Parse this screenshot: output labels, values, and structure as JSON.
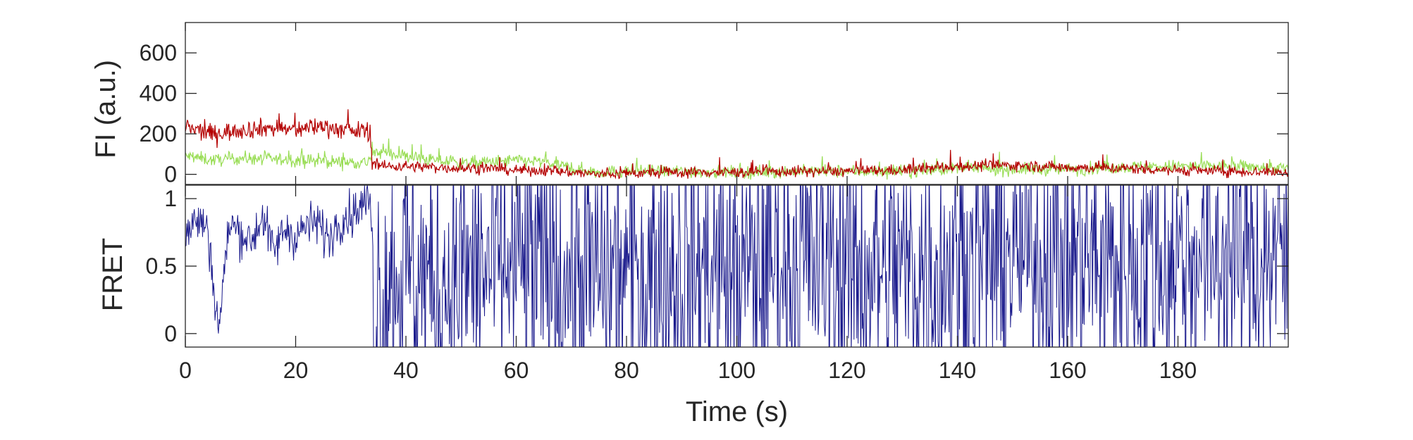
{
  "chart_data": [
    {
      "type": "line",
      "panel": "top",
      "title": "",
      "xlabel": "",
      "ylabel": "FI (a.u.)",
      "xlim": [
        0,
        200
      ],
      "ylim": [
        -50,
        750
      ],
      "yticks": [
        0,
        200,
        400,
        600
      ],
      "ytick_labels": [
        "0",
        "200",
        "400",
        "600"
      ],
      "grid": false,
      "series": [
        {
          "color": "#99dd55",
          "x": [
            0,
            5,
            10,
            15,
            20,
            25,
            30,
            33,
            34,
            36,
            40,
            45,
            50,
            55,
            60,
            65,
            70,
            75,
            80,
            90,
            100,
            110,
            120,
            130,
            140,
            150,
            160,
            170,
            180,
            190,
            200
          ],
          "values": [
            90,
            70,
            80,
            75,
            70,
            65,
            60,
            60,
            100,
            110,
            90,
            70,
            55,
            60,
            70,
            60,
            30,
            10,
            15,
            15,
            10,
            15,
            15,
            15,
            30,
            25,
            25,
            35,
            40,
            40,
            30
          ]
        },
        {
          "color": "#b40000",
          "x": [
            0,
            5,
            10,
            15,
            20,
            25,
            30,
            33,
            34,
            36,
            40,
            45,
            50,
            55,
            60,
            65,
            70,
            75,
            80,
            90,
            100,
            110,
            120,
            130,
            140,
            150,
            160,
            170,
            180,
            190,
            200
          ],
          "values": [
            230,
            200,
            220,
            230,
            220,
            240,
            210,
            220,
            60,
            40,
            40,
            35,
            30,
            30,
            20,
            20,
            10,
            0,
            5,
            10,
            10,
            15,
            15,
            20,
            40,
            45,
            35,
            30,
            20,
            15,
            10
          ]
        }
      ]
    },
    {
      "type": "line",
      "panel": "bottom",
      "title": "",
      "xlabel": "Time (s)",
      "ylabel": "FRET",
      "xlim": [
        0,
        200
      ],
      "ylim": [
        -0.1,
        1.1
      ],
      "xticks": [
        0,
        20,
        40,
        60,
        80,
        100,
        120,
        140,
        160,
        180
      ],
      "xtick_labels": [
        "0",
        "20",
        "40",
        "60",
        "80",
        "100",
        "120",
        "140",
        "160",
        "180"
      ],
      "yticks": [
        0,
        0.5,
        1
      ],
      "ytick_labels": [
        "0",
        "0.5",
        "1"
      ],
      "grid": false,
      "series": [
        {
          "color": "#1a1a8c",
          "x": [
            0,
            2,
            4,
            6,
            8,
            10,
            12,
            14,
            16,
            18,
            20,
            22,
            24,
            26,
            28,
            30,
            32,
            33.5,
            34,
            34.5,
            35,
            36,
            38,
            40,
            45,
            50,
            60,
            70,
            80,
            90,
            100,
            110,
            120,
            130,
            140,
            150,
            160,
            170,
            180,
            190,
            200
          ],
          "values": [
            0.72,
            0.85,
            0.78,
            0.03,
            0.82,
            0.75,
            0.68,
            0.88,
            0.6,
            0.78,
            0.72,
            0.8,
            0.82,
            0.7,
            0.85,
            0.88,
            0.95,
            1.0,
            0.55,
            0.15,
            0.35,
            0.3,
            0.45,
            0.5,
            0.35,
            0.45,
            0.5,
            0.4,
            0.45,
            0.5,
            0.45,
            0.55,
            0.5,
            0.45,
            0.5,
            0.6,
            0.55,
            0.5,
            0.55,
            0.6,
            0.55
          ]
        }
      ]
    }
  ]
}
